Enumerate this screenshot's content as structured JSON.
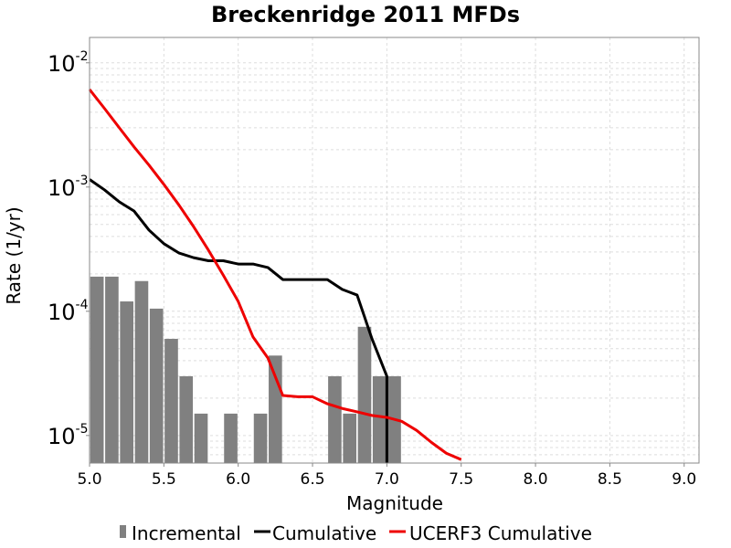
{
  "chart_data": {
    "type": "bar",
    "title": "Breckenridge 2011 MFDs",
    "xlabel": "Magnitude",
    "ylabel": "Rate (1/yr)",
    "xlim": [
      5.0,
      9.1
    ],
    "ylim": [
      6e-06,
      0.016
    ],
    "yscale": "log",
    "grid": true,
    "legend_position": "bottom",
    "x_ticks": [
      "5.0",
      "5.5",
      "6.0",
      "6.5",
      "7.0",
      "7.5",
      "8.0",
      "8.5",
      "9.0"
    ],
    "y_ticks": [
      {
        "value": 1e-05,
        "base": "10",
        "exp": "-5"
      },
      {
        "value": 0.0001,
        "base": "10",
        "exp": "-4"
      },
      {
        "value": 0.001,
        "base": "10",
        "exp": "-3"
      },
      {
        "value": 0.01,
        "base": "10",
        "exp": "-2"
      }
    ],
    "series": [
      {
        "name": "Incremental",
        "kind": "bar",
        "color": "#808080",
        "bar_width": 0.09,
        "x": [
          5.05,
          5.15,
          5.25,
          5.35,
          5.45,
          5.55,
          5.65,
          5.75,
          5.95,
          6.15,
          6.25,
          6.65,
          6.75,
          6.85,
          6.95,
          7.05
        ],
        "y": [
          0.00019,
          0.00019,
          0.00012,
          0.000175,
          0.000105,
          6e-05,
          3e-05,
          1.5e-05,
          1.5e-05,
          1.5e-05,
          4.4e-05,
          3e-05,
          1.5e-05,
          7.5e-05,
          3e-05,
          3e-05
        ]
      },
      {
        "name": "Cumulative",
        "kind": "line",
        "color": "#000000",
        "x": [
          5.0,
          5.1,
          5.2,
          5.3,
          5.4,
          5.5,
          5.6,
          5.7,
          5.8,
          5.9,
          6.0,
          6.1,
          6.2,
          6.3,
          6.4,
          6.5,
          6.6,
          6.7,
          6.8,
          6.9,
          7.0,
          7.0
        ],
        "y": [
          0.00115,
          0.00095,
          0.00076,
          0.00064,
          0.00045,
          0.00035,
          0.000295,
          0.00027,
          0.000255,
          0.000255,
          0.00024,
          0.00024,
          0.000225,
          0.00018,
          0.00018,
          0.00018,
          0.00018,
          0.00015,
          0.000135,
          6e-05,
          3e-05,
          6e-06
        ]
      },
      {
        "name": "UCERF3 Cumulative",
        "kind": "line",
        "color": "#ee0000",
        "x": [
          5.0,
          5.1,
          5.2,
          5.3,
          5.4,
          5.5,
          5.6,
          5.7,
          5.8,
          5.9,
          6.0,
          6.1,
          6.2,
          6.3,
          6.4,
          6.5,
          6.6,
          6.7,
          6.8,
          6.9,
          7.0,
          7.1,
          7.2,
          7.3,
          7.4,
          7.5
        ],
        "y": [
          0.0061,
          0.0043,
          0.003,
          0.0021,
          0.0015,
          0.00105,
          0.00072,
          0.00048,
          0.00031,
          0.000195,
          0.00012,
          6.2e-05,
          4.2e-05,
          2.1e-05,
          2.05e-05,
          2.05e-05,
          1.8e-05,
          1.65e-05,
          1.55e-05,
          1.45e-05,
          1.4e-05,
          1.3e-05,
          1.1e-05,
          8.8e-06,
          7.2e-06,
          6.4e-06
        ]
      }
    ]
  }
}
